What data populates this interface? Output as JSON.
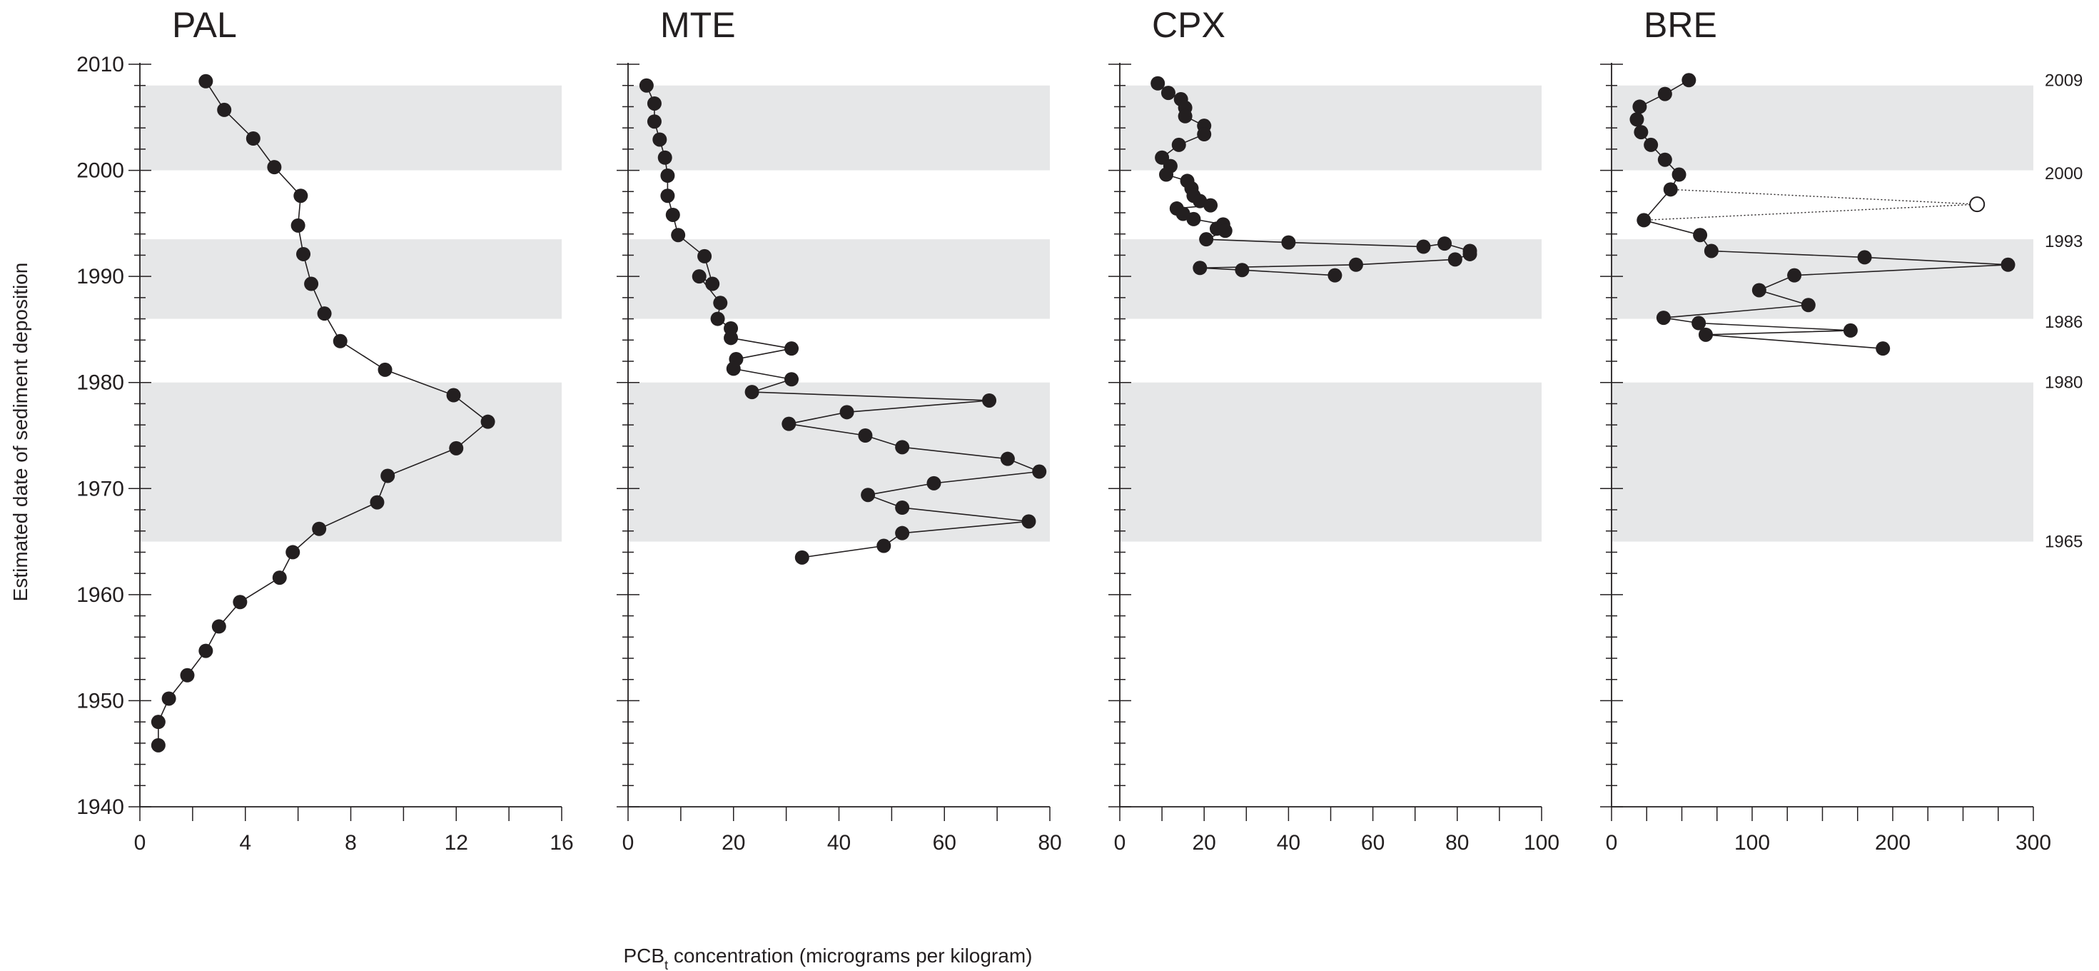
{
  "chart_data": {
    "type": "scatter",
    "ylabel": "Estimated date of sediment deposition",
    "xlabel_prefix": "PCB",
    "xlabel_subscript": "t",
    "xlabel_suffix": " concentration (micrograms per kilogram)",
    "ylim": [
      1940,
      2010
    ],
    "yticks": [
      1940,
      1950,
      1960,
      1970,
      1980,
      1990,
      2000,
      2010
    ],
    "bands": [
      [
        2000,
        2008
      ],
      [
        1986,
        1993.5
      ],
      [
        1965,
        1980
      ]
    ],
    "reference_years": [
      {
        "label": "2009",
        "value": 2008.5
      },
      {
        "label": "2000",
        "value": 1999.7
      },
      {
        "label": "1993",
        "value": 1993.3
      },
      {
        "label": "1986",
        "value": 1985.7
      },
      {
        "label": "1980",
        "value": 1980
      },
      {
        "label": "1965",
        "value": 1965
      }
    ],
    "colors": {
      "marker": "#231f20",
      "band": "#e6e7e8",
      "axis": "#231f20",
      "hollow": "#ffffff"
    },
    "panels": [
      {
        "name": "PAL",
        "xlim": [
          0,
          16
        ],
        "xticks": [
          0,
          4,
          8,
          12,
          16
        ],
        "minor_step": 2,
        "points": [
          [
            2.5,
            2008.4
          ],
          [
            3.2,
            2005.7
          ],
          [
            4.3,
            2003
          ],
          [
            5.1,
            2000.3
          ],
          [
            6.1,
            1997.6
          ],
          [
            6.0,
            1994.8
          ],
          [
            6.2,
            1992.1
          ],
          [
            6.5,
            1989.3
          ],
          [
            7.0,
            1986.5
          ],
          [
            7.6,
            1983.9
          ],
          [
            9.3,
            1981.2
          ],
          [
            11.9,
            1978.8
          ],
          [
            13.2,
            1976.3
          ],
          [
            12.0,
            1973.8
          ],
          [
            9.4,
            1971.2
          ],
          [
            9.0,
            1968.7
          ],
          [
            6.8,
            1966.2
          ],
          [
            5.8,
            1964
          ],
          [
            5.3,
            1961.6
          ],
          [
            3.8,
            1959.3
          ],
          [
            3.0,
            1957
          ],
          [
            2.5,
            1954.7
          ],
          [
            1.8,
            1952.4
          ],
          [
            1.1,
            1950.2
          ],
          [
            0.7,
            1948
          ],
          [
            0.7,
            1945.8
          ]
        ],
        "hollow_points": []
      },
      {
        "name": "MTE",
        "xlim": [
          0,
          80
        ],
        "xticks": [
          0,
          20,
          40,
          60,
          80
        ],
        "minor_step": 10,
        "points": [
          [
            3.5,
            2008
          ],
          [
            5,
            2006.3
          ],
          [
            5,
            2004.6
          ],
          [
            6,
            2002.9
          ],
          [
            7,
            2001.2
          ],
          [
            7.5,
            1999.5
          ],
          [
            7.5,
            1997.6
          ],
          [
            8.5,
            1995.8
          ],
          [
            9.5,
            1993.9
          ],
          [
            14.5,
            1991.9
          ],
          [
            16,
            1989.3
          ],
          [
            13.5,
            1990
          ],
          [
            17.5,
            1987.5
          ],
          [
            17,
            1986
          ],
          [
            19.5,
            1985.1
          ],
          [
            19.5,
            1984.2
          ],
          [
            31,
            1983.2
          ],
          [
            20.5,
            1982.2
          ],
          [
            20,
            1981.3
          ],
          [
            31,
            1980.3
          ],
          [
            23.5,
            1979.1
          ],
          [
            68.5,
            1978.3
          ],
          [
            41.5,
            1977.2
          ],
          [
            30.5,
            1976.1
          ],
          [
            45,
            1975
          ],
          [
            52,
            1973.9
          ],
          [
            72,
            1972.8
          ],
          [
            78,
            1971.6
          ],
          [
            58,
            1970.5
          ],
          [
            45.5,
            1969.4
          ],
          [
            52,
            1968.2
          ],
          [
            76,
            1966.9
          ],
          [
            52,
            1965.8
          ],
          [
            48.5,
            1964.6
          ],
          [
            33,
            1963.5
          ]
        ],
        "hollow_points": []
      },
      {
        "name": "CPX",
        "xlim": [
          0,
          100
        ],
        "xticks": [
          0,
          20,
          40,
          60,
          80,
          100
        ],
        "minor_step": 10,
        "points": [
          [
            9,
            2008.2
          ],
          [
            11.5,
            2007.3
          ],
          [
            14.5,
            2006.7
          ],
          [
            15.5,
            2005.9
          ],
          [
            15.5,
            2005.1
          ],
          [
            20,
            2004.2
          ],
          [
            20,
            2003.4
          ],
          [
            14,
            2002.4
          ],
          [
            10,
            2001.2
          ],
          [
            12,
            2000.4
          ],
          [
            11,
            1999.6
          ],
          [
            16,
            1999
          ],
          [
            17,
            1998.3
          ],
          [
            17.5,
            1997.6
          ],
          [
            19,
            1997.1
          ],
          [
            21.5,
            1996.7
          ],
          [
            13.5,
            1996.4
          ],
          [
            15,
            1995.9
          ],
          [
            17.5,
            1995.4
          ],
          [
            24.5,
            1994.9
          ],
          [
            23,
            1994.5
          ],
          [
            25,
            1994.3
          ],
          [
            20.5,
            1993.5
          ],
          [
            40,
            1993.2
          ],
          [
            72,
            1992.8
          ],
          [
            77,
            1993.1
          ],
          [
            83,
            1992.4
          ],
          [
            83,
            1992.1
          ],
          [
            79.5,
            1991.6
          ],
          [
            56,
            1991.1
          ],
          [
            19,
            1990.8
          ],
          [
            29,
            1990.6
          ],
          [
            51,
            1990.1
          ]
        ],
        "hollow_points": []
      },
      {
        "name": "BRE",
        "xlim": [
          0,
          300
        ],
        "xticks": [
          0,
          100,
          200,
          300
        ],
        "minor_step": 25,
        "points": [
          [
            55,
            2008.5
          ],
          [
            38,
            2007.2
          ],
          [
            20,
            2006
          ],
          [
            18,
            2004.8
          ],
          [
            21,
            2003.6
          ],
          [
            28,
            2002.4
          ],
          [
            38,
            2001
          ],
          [
            48,
            1999.6
          ],
          [
            42,
            1998.2
          ],
          [
            23,
            1995.3
          ],
          [
            63,
            1993.9
          ],
          [
            71,
            1992.4
          ],
          [
            180,
            1991.8
          ],
          [
            282,
            1991.1
          ],
          [
            130,
            1990.1
          ],
          [
            105,
            1988.7
          ],
          [
            140,
            1987.3
          ],
          [
            37,
            1986.1
          ],
          [
            62,
            1985.6
          ],
          [
            170,
            1984.9
          ],
          [
            67,
            1984.5
          ],
          [
            193,
            1983.2
          ]
        ],
        "hollow_points": [
          [
            260,
            1996.8
          ]
        ],
        "dotted_from": [
          42,
          1998.2
        ],
        "dotted_to": [
          23,
          1995.3
        ]
      }
    ]
  }
}
